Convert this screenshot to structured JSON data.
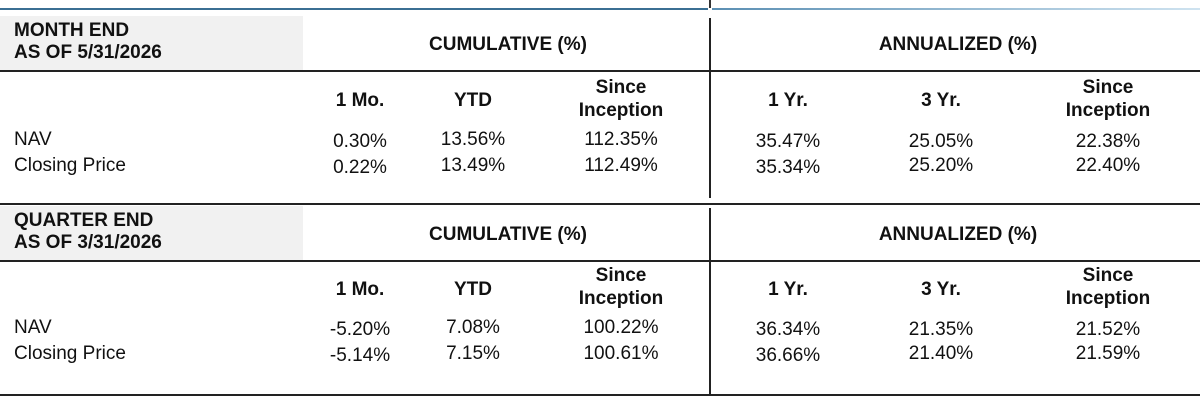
{
  "sections": [
    {
      "title_line1": "MONTH END",
      "title_line2": "AS OF 5/31/2026",
      "cumulative_label": "CUMULATIVE (%)",
      "annualized_label": "ANNUALIZED (%)",
      "columns": {
        "c1": "1 Mo.",
        "c2": "YTD",
        "c3_line1": "Since",
        "c3_line2": "Inception",
        "a1": "1 Yr.",
        "a2": "3 Yr.",
        "a3_line1": "Since",
        "a3_line2": "Inception"
      },
      "rows": [
        {
          "label": "NAV",
          "values": [
            "0.30%",
            "13.56%",
            "112.35%",
            "35.47%",
            "25.05%",
            "22.38%"
          ]
        },
        {
          "label": "Closing Price",
          "values": [
            "0.22%",
            "13.49%",
            "112.49%",
            "35.34%",
            "25.20%",
            "22.40%"
          ]
        }
      ]
    },
    {
      "title_line1": "QUARTER END",
      "title_line2": "AS OF 3/31/2026",
      "cumulative_label": "CUMULATIVE (%)",
      "annualized_label": "ANNUALIZED (%)",
      "columns": {
        "c1": "1 Mo.",
        "c2": "YTD",
        "c3_line1": "Since",
        "c3_line2": "Inception",
        "a1": "1 Yr.",
        "a2": "3 Yr.",
        "a3_line1": "Since",
        "a3_line2": "Inception"
      },
      "rows": [
        {
          "label": "NAV",
          "values": [
            "-5.20%",
            "7.08%",
            "100.22%",
            "36.34%",
            "21.35%",
            "21.52%"
          ]
        },
        {
          "label": "Closing Price",
          "values": [
            "-5.14%",
            "7.15%",
            "100.61%",
            "36.66%",
            "21.40%",
            "21.59%"
          ]
        }
      ]
    }
  ]
}
